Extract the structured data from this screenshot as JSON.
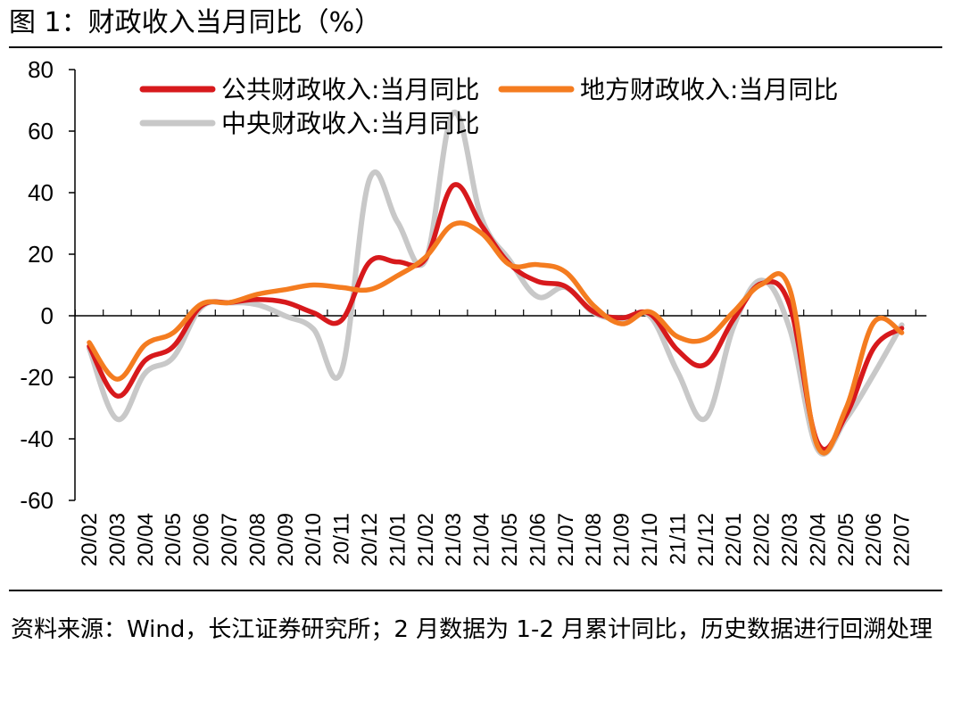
{
  "figure": {
    "title": "图 1：财政收入当月同比（%）",
    "source_note": "资料来源：Wind，长江证券研究所；2 月数据为 1-2 月累计同比，历史数据进行回溯处理"
  },
  "chart_data": {
    "type": "line",
    "title": "",
    "xlabel": "",
    "ylabel": "",
    "ylim": [
      -60,
      80
    ],
    "yticks": [
      -60,
      -40,
      -20,
      0,
      20,
      40,
      60,
      80
    ],
    "grid": false,
    "legend_position": "top",
    "categories": [
      "20/02",
      "20/03",
      "20/04",
      "20/05",
      "20/06",
      "20/07",
      "20/08",
      "20/09",
      "20/10",
      "20/11",
      "20/12",
      "21/01",
      "21/02",
      "21/03",
      "21/04",
      "21/05",
      "21/06",
      "21/07",
      "21/08",
      "21/09",
      "21/10",
      "21/11",
      "21/12",
      "22/01",
      "22/02",
      "22/03",
      "22/04",
      "22/05",
      "22/06",
      "22/07"
    ],
    "series": [
      {
        "name": "公共财政收入:当月同比",
        "color": "#d7191c",
        "values": [
          -9.9,
          -26.1,
          -14.5,
          -10.0,
          3.2,
          4.3,
          5.3,
          4.4,
          1.0,
          -1.5,
          17.4,
          17.5,
          18.5,
          42.4,
          29.4,
          16.9,
          11.2,
          9.5,
          1.3,
          -0.7,
          0.7,
          -11.2,
          -15.8,
          -1.1,
          10.5,
          3.4,
          -41.3,
          -32.5,
          -10.5,
          -4.1
        ]
      },
      {
        "name": "地方财政收入:当月同比",
        "color": "#f47c20",
        "values": [
          -8.7,
          -20.6,
          -9.4,
          -5.5,
          3.8,
          4.3,
          7.0,
          8.5,
          10.0,
          9.2,
          8.5,
          13.0,
          19.0,
          29.7,
          26.8,
          16.6,
          16.6,
          14.2,
          3.3,
          -2.6,
          1.3,
          -6.8,
          -7.5,
          1.3,
          10.2,
          8.7,
          -42.5,
          -30.3,
          -2.2,
          -5.5
        ]
      },
      {
        "name": "中央财政收入:当月同比",
        "color": "#c8c8c8",
        "values": [
          -10.6,
          -33.6,
          -18.6,
          -13.5,
          2.7,
          4.2,
          3.6,
          -0.1,
          -4.3,
          -18.0,
          44.3,
          30.5,
          18.0,
          66.0,
          31.8,
          18.1,
          6.2,
          9.2,
          1.0,
          -1.0,
          0.0,
          -18.3,
          -33.3,
          -3.5,
          11.5,
          -4.2,
          -43.5,
          -33.7,
          -19.0,
          -3.0
        ]
      }
    ]
  }
}
